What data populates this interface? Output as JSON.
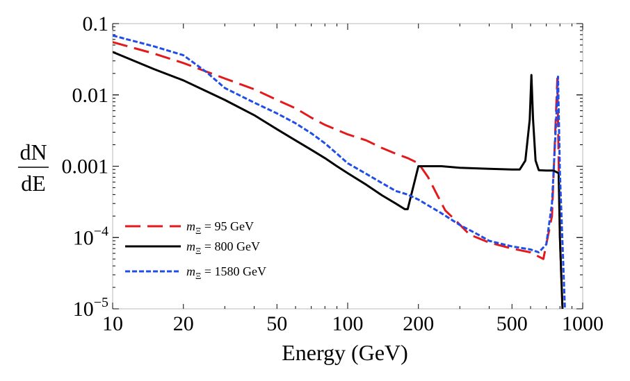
{
  "chart_data": {
    "type": "line",
    "title": "",
    "xlabel": "Energy (GeV)",
    "ylabel_num": "dN",
    "ylabel_den": "dE",
    "x_scale": "log",
    "y_scale": "log",
    "xlim": [
      10,
      1000
    ],
    "ylim": [
      1e-05,
      0.1
    ],
    "grid": false,
    "legend_position": "bottom-left",
    "x_ticks": [
      {
        "value": 10,
        "label": "10"
      },
      {
        "value": 20,
        "label": "20"
      },
      {
        "value": 50,
        "label": "50"
      },
      {
        "value": 100,
        "label": "100"
      },
      {
        "value": 200,
        "label": "200"
      },
      {
        "value": 500,
        "label": "500"
      },
      {
        "value": 1000,
        "label": "1000"
      }
    ],
    "y_ticks": [
      {
        "value": 0.1,
        "base": "0.1",
        "exp": ""
      },
      {
        "value": 0.01,
        "base": "0.01",
        "exp": ""
      },
      {
        "value": 0.001,
        "base": "0.001",
        "exp": ""
      },
      {
        "value": 0.0001,
        "base": "10",
        "exp": "−4"
      },
      {
        "value": 1e-05,
        "base": "10",
        "exp": "−5"
      }
    ],
    "series": [
      {
        "name": "95 GeV",
        "legend_prefix": "m",
        "legend_sub": "Ξ",
        "legend_value": " = 95 GeV",
        "color": "#e31a1c",
        "style": "long-dash",
        "points": [
          [
            10,
            0.055
          ],
          [
            15,
            0.038
          ],
          [
            20,
            0.028
          ],
          [
            30,
            0.017
          ],
          [
            40,
            0.012
          ],
          [
            50,
            0.0085
          ],
          [
            60,
            0.0065
          ],
          [
            70,
            0.0048
          ],
          [
            80,
            0.0038
          ],
          [
            100,
            0.0028
          ],
          [
            120,
            0.0023
          ],
          [
            140,
            0.0018
          ],
          [
            160,
            0.0015
          ],
          [
            180,
            0.0013
          ],
          [
            200,
            0.0011
          ],
          [
            220,
            0.0007
          ],
          [
            240,
            0.0004
          ],
          [
            260,
            0.00024
          ],
          [
            290,
            0.00017
          ],
          [
            330,
            0.00011
          ],
          [
            400,
            8.5e-05
          ],
          [
            500,
            7e-05
          ],
          [
            600,
            6.2e-05
          ],
          [
            680,
            5e-05
          ],
          [
            740,
            0.0002
          ],
          [
            780,
            0.017
          ],
          [
            800,
            0.0001
          ],
          [
            820,
            1e-05
          ]
        ]
      },
      {
        "name": "800 GeV",
        "legend_prefix": "m",
        "legend_sub": "Ξ",
        "legend_value": " = 800 GeV",
        "color": "#000000",
        "style": "solid",
        "points": [
          [
            10,
            0.04
          ],
          [
            15,
            0.023
          ],
          [
            20,
            0.016
          ],
          [
            30,
            0.0085
          ],
          [
            40,
            0.0052
          ],
          [
            50,
            0.0033
          ],
          [
            60,
            0.0023
          ],
          [
            70,
            0.0017
          ],
          [
            80,
            0.0013
          ],
          [
            90,
            0.001
          ],
          [
            100,
            0.0008
          ],
          [
            120,
            0.00055
          ],
          [
            140,
            0.00039
          ],
          [
            160,
            0.0003
          ],
          [
            175,
            0.00025
          ],
          [
            180,
            0.00025
          ],
          [
            200,
            0.001
          ],
          [
            250,
            0.001
          ],
          [
            300,
            0.00095
          ],
          [
            400,
            0.00092
          ],
          [
            500,
            0.0009
          ],
          [
            540,
            0.0009
          ],
          [
            570,
            0.0012
          ],
          [
            595,
            0.0045
          ],
          [
            605,
            0.019
          ],
          [
            615,
            0.0045
          ],
          [
            630,
            0.0012
          ],
          [
            650,
            0.00088
          ],
          [
            700,
            0.00087
          ],
          [
            750,
            0.00087
          ],
          [
            790,
            0.0008
          ],
          [
            800,
            0.0001
          ],
          [
            820,
            1e-05
          ]
        ]
      },
      {
        "name": "1580 GeV",
        "legend_prefix": "m",
        "legend_sub": "Ξ",
        "legend_value": " = 1580 GeV",
        "color": "#1f4de8",
        "style": "short-dash",
        "points": [
          [
            10,
            0.068
          ],
          [
            15,
            0.048
          ],
          [
            20,
            0.036
          ],
          [
            25,
            0.021
          ],
          [
            30,
            0.0125
          ],
          [
            40,
            0.0078
          ],
          [
            50,
            0.0055
          ],
          [
            60,
            0.004
          ],
          [
            70,
            0.0029
          ],
          [
            80,
            0.0021
          ],
          [
            90,
            0.0015
          ],
          [
            100,
            0.0011
          ],
          [
            120,
            0.00078
          ],
          [
            140,
            0.00058
          ],
          [
            160,
            0.00045
          ],
          [
            180,
            0.0004
          ],
          [
            200,
            0.00034
          ],
          [
            250,
            0.00022
          ],
          [
            300,
            0.00015
          ],
          [
            350,
            0.000115
          ],
          [
            400,
            9e-05
          ],
          [
            500,
            7.5e-05
          ],
          [
            600,
            6.8e-05
          ],
          [
            650,
            6.2e-05
          ],
          [
            700,
            8e-05
          ],
          [
            740,
            0.0003
          ],
          [
            770,
            0.004
          ],
          [
            785,
            0.018
          ],
          [
            800,
            0.0008
          ],
          [
            840,
            1e-05
          ]
        ]
      }
    ]
  }
}
